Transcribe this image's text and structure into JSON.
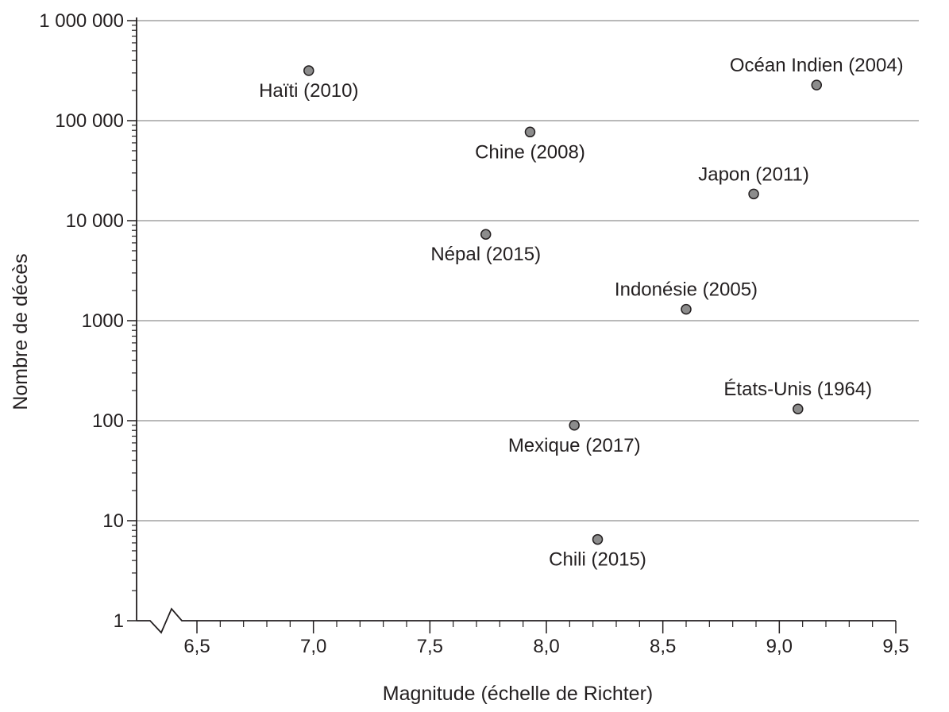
{
  "chart_data": {
    "type": "scatter",
    "xlabel": "Magnitude (échelle de Richter)",
    "ylabel": "Nombre de décès",
    "x_scale": "linear",
    "y_scale": "log",
    "xlim": [
      6.3,
      9.5
    ],
    "ylim": [
      1,
      1000000
    ],
    "x_axis_break": true,
    "grid": "horizontal",
    "x_ticks": [
      {
        "value": 6.5,
        "label": "6,5"
      },
      {
        "value": 7.0,
        "label": "7,0"
      },
      {
        "value": 7.5,
        "label": "7,5"
      },
      {
        "value": 8.0,
        "label": "8,0"
      },
      {
        "value": 8.5,
        "label": "8,5"
      },
      {
        "value": 9.0,
        "label": "9,0"
      },
      {
        "value": 9.5,
        "label": "9,5"
      }
    ],
    "y_ticks": [
      {
        "value": 1,
        "label": "1"
      },
      {
        "value": 10,
        "label": "10"
      },
      {
        "value": 100,
        "label": "100"
      },
      {
        "value": 1000,
        "label": "1000"
      },
      {
        "value": 10000,
        "label": "10 000"
      },
      {
        "value": 100000,
        "label": "100 000"
      },
      {
        "value": 1000000,
        "label": "1 000 000"
      }
    ],
    "marker_color": "#8c8c8c",
    "points": [
      {
        "label": "Haïti (2010)",
        "x": 6.98,
        "y": 316000,
        "label_pos": "below"
      },
      {
        "label": "Océan Indien (2004)",
        "x": 9.16,
        "y": 227000,
        "label_pos": "above"
      },
      {
        "label": "Chine (2008)",
        "x": 7.93,
        "y": 77000,
        "label_pos": "below"
      },
      {
        "label": "Japon (2011)",
        "x": 8.89,
        "y": 18500,
        "label_pos": "above"
      },
      {
        "label": "Népal (2015)",
        "x": 7.74,
        "y": 7300,
        "label_pos": "below"
      },
      {
        "label": "Indonésie (2005)",
        "x": 8.6,
        "y": 1300,
        "label_pos": "above"
      },
      {
        "label": "États-Unis (1964)",
        "x": 9.08,
        "y": 131,
        "label_pos": "above"
      },
      {
        "label": "Mexique (2017)",
        "x": 8.12,
        "y": 90,
        "label_pos": "below"
      },
      {
        "label": "Chili (2015)",
        "x": 8.22,
        "y": 6.5,
        "label_pos": "below"
      }
    ]
  }
}
